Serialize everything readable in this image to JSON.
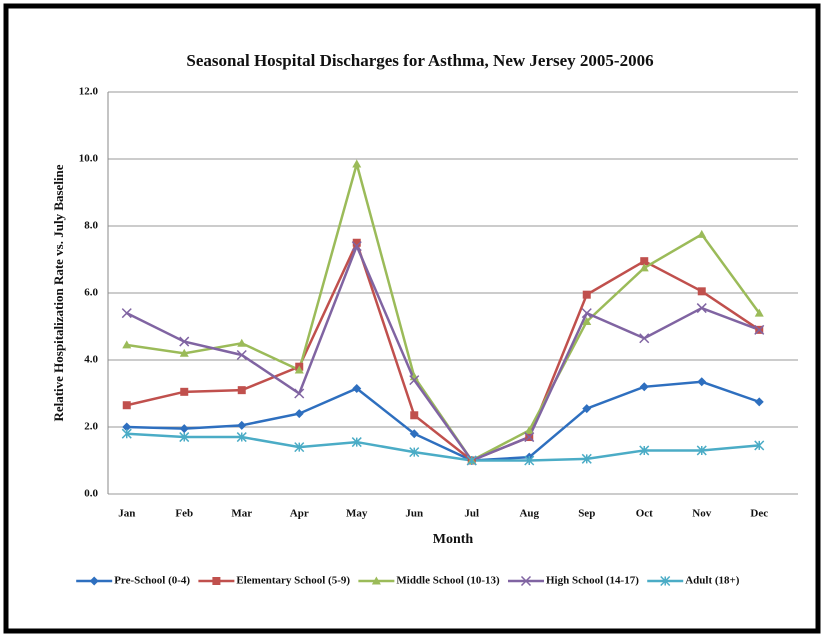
{
  "chart_data": {
    "type": "line",
    "title": "Seasonal Hospital Discharges for Asthma, New Jersey 2005-2006",
    "xlabel": "Month",
    "ylabel": "Relative Hospitalization Rate vs. July Baseline",
    "categories": [
      "Jan",
      "Feb",
      "Mar",
      "Apr",
      "May",
      "Jun",
      "Jul",
      "Aug",
      "Sep",
      "Oct",
      "Nov",
      "Dec"
    ],
    "ylim": [
      0,
      12
    ],
    "yticks": [
      {
        "value": 0,
        "label": "0.0"
      },
      {
        "value": 2,
        "label": "2.0"
      },
      {
        "value": 4,
        "label": "4.0"
      },
      {
        "value": 6,
        "label": "6.0"
      },
      {
        "value": 8,
        "label": "8.0"
      },
      {
        "value": 10,
        "label": "10.0"
      },
      {
        "value": 12,
        "label": "12.0"
      }
    ],
    "grid": true,
    "legend": "bottom",
    "series": [
      {
        "name": "Pre-School (0-4)",
        "color": "#2e6fbf",
        "marker": "diamond",
        "values": [
          2.0,
          1.95,
          2.05,
          2.4,
          3.15,
          1.8,
          1.0,
          1.1,
          2.55,
          3.2,
          3.35,
          2.75
        ]
      },
      {
        "name": "Elementary School (5-9)",
        "color": "#c0504d",
        "marker": "square",
        "values": [
          2.65,
          3.05,
          3.1,
          3.8,
          7.5,
          2.35,
          1.0,
          1.7,
          5.95,
          6.95,
          6.05,
          4.9
        ]
      },
      {
        "name": "Middle School (10-13)",
        "color": "#9bbb59",
        "marker": "triangle",
        "values": [
          4.45,
          4.2,
          4.5,
          3.7,
          9.85,
          3.5,
          1.0,
          1.9,
          5.15,
          6.75,
          7.75,
          5.4
        ]
      },
      {
        "name": "High School (14-17)",
        "color": "#8064a2",
        "marker": "x",
        "values": [
          5.4,
          4.55,
          4.15,
          3.0,
          7.4,
          3.4,
          1.0,
          1.7,
          5.4,
          4.65,
          5.55,
          4.9
        ]
      },
      {
        "name": "Adult (18+)",
        "color": "#4bacc6",
        "marker": "star",
        "values": [
          1.8,
          1.7,
          1.7,
          1.4,
          1.55,
          1.25,
          1.0,
          1.0,
          1.05,
          1.3,
          1.3,
          1.45
        ]
      }
    ]
  }
}
